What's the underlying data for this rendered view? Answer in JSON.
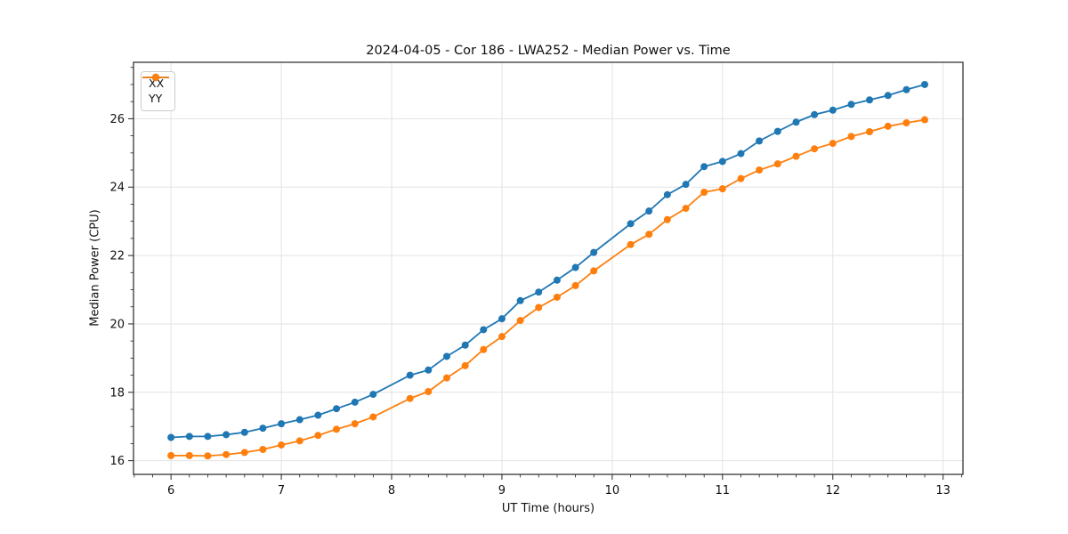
{
  "chart_data": {
    "type": "line",
    "title": "2024-04-05 - Cor 186 - LWA252 - Median Power vs. Time",
    "xlabel": "UT Time (hours)",
    "ylabel": "Median Power (CPU)",
    "xlim": [
      5.66,
      13.18
    ],
    "ylim": [
      15.6,
      27.65
    ],
    "xticks": [
      6,
      7,
      8,
      9,
      10,
      11,
      12,
      13
    ],
    "yticks": [
      16,
      18,
      20,
      22,
      24,
      26
    ],
    "x_minor_step": 0.16667,
    "y_minor_step": 0.5,
    "grid": true,
    "legend": {
      "position": "upper-left"
    },
    "x": [
      6.0,
      6.167,
      6.333,
      6.5,
      6.667,
      6.833,
      7.0,
      7.167,
      7.333,
      7.5,
      7.667,
      7.833,
      8.167,
      8.333,
      8.5,
      8.667,
      8.833,
      9.0,
      9.167,
      9.333,
      9.5,
      9.667,
      9.833,
      10.167,
      10.333,
      10.5,
      10.667,
      10.833,
      11.0,
      11.167,
      11.333,
      11.5,
      11.667,
      11.833,
      12.0,
      12.167,
      12.333,
      12.5,
      12.667,
      12.833
    ],
    "series": [
      {
        "name": "XX",
        "color": "#1f77b4",
        "values": [
          16.68,
          16.71,
          16.71,
          16.76,
          16.83,
          16.95,
          17.08,
          17.2,
          17.33,
          17.52,
          17.71,
          17.94,
          18.5,
          18.65,
          19.05,
          19.38,
          19.83,
          20.15,
          20.68,
          20.93,
          21.28,
          21.65,
          22.09,
          22.93,
          23.3,
          23.78,
          24.08,
          24.6,
          24.75,
          24.98,
          25.35,
          25.63,
          25.9,
          26.12,
          26.25,
          26.42,
          26.55,
          26.68,
          26.85,
          27.0
        ]
      },
      {
        "name": "YY",
        "color": "#ff7f0e",
        "values": [
          16.15,
          16.15,
          16.14,
          16.18,
          16.24,
          16.33,
          16.46,
          16.58,
          16.74,
          16.92,
          17.08,
          17.28,
          17.82,
          18.02,
          18.42,
          18.78,
          19.25,
          19.63,
          20.1,
          20.48,
          20.78,
          21.12,
          21.55,
          22.32,
          22.62,
          23.05,
          23.38,
          23.85,
          23.95,
          24.25,
          24.5,
          24.68,
          24.9,
          25.12,
          25.28,
          25.48,
          25.62,
          25.78,
          25.88,
          25.97
        ]
      }
    ],
    "style": {
      "background": "#ffffff",
      "grid_color": "#e3e3e3",
      "spine_color": "#262626",
      "tick_label_color": "#111111",
      "marker_radius": 4,
      "line_width": 1.8
    }
  }
}
